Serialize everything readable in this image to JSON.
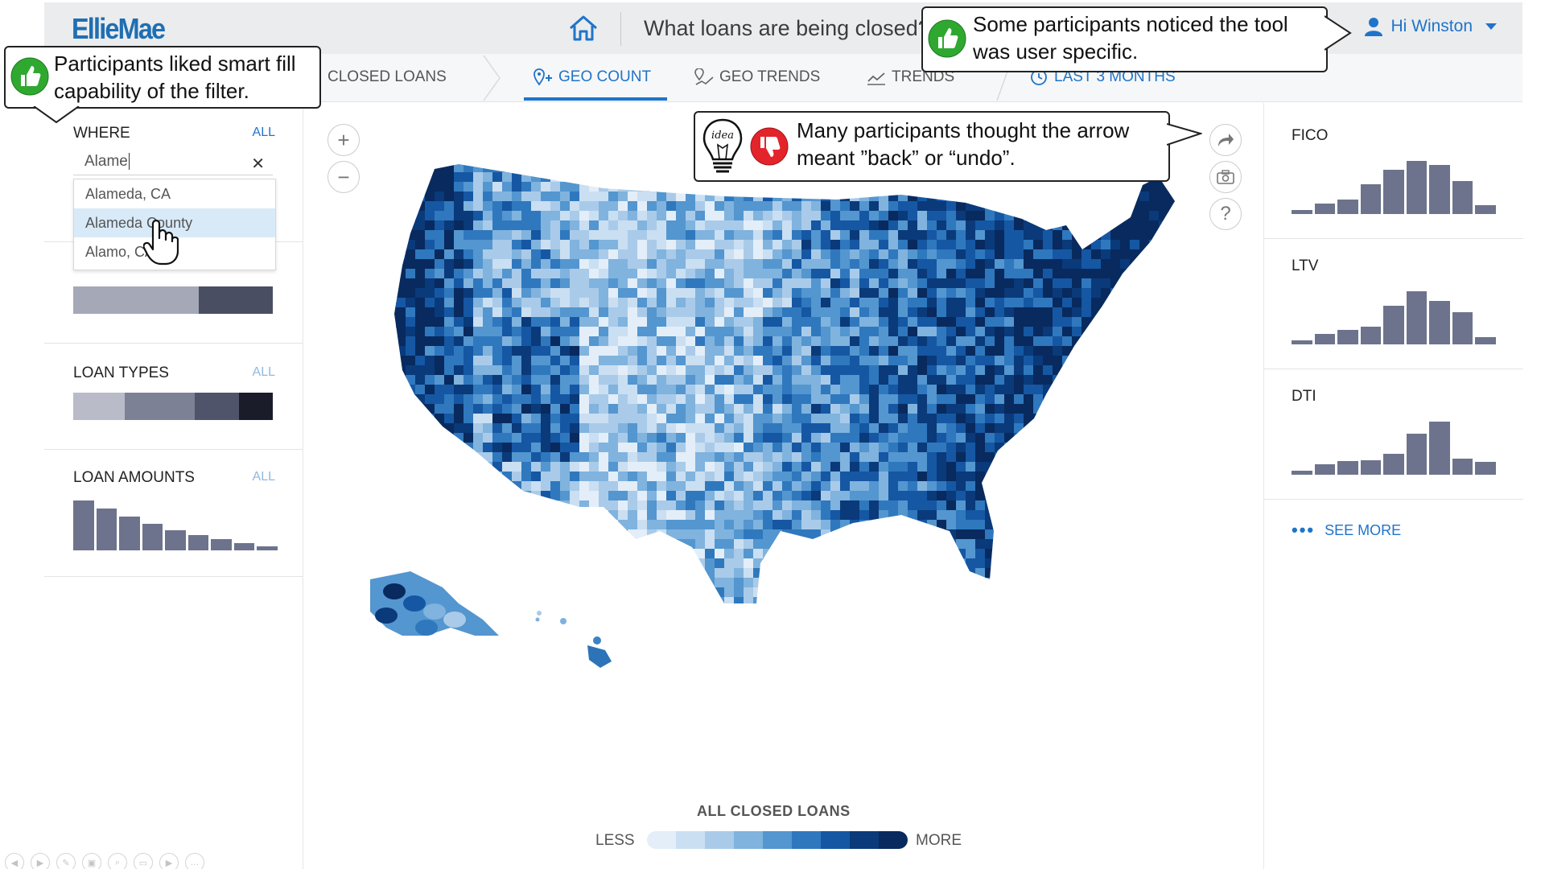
{
  "header": {
    "logo": "EllieMae",
    "title": "What loans are being closed?",
    "user_label": "Hi Winston"
  },
  "nav": {
    "items": [
      {
        "label": "CLOSED LOANS",
        "active": false
      },
      {
        "label": "GEO COUNT",
        "active": true,
        "icon": "map-pin-add-icon"
      },
      {
        "label": "GEO TRENDS",
        "active": false,
        "icon": "geo-trend-icon"
      },
      {
        "label": "TRENDS",
        "active": false,
        "icon": "line-chart-icon"
      },
      {
        "label": "LAST 3 MONTHS",
        "active": false,
        "icon": "clock-icon"
      }
    ]
  },
  "left_panel": {
    "where": {
      "label": "WHERE",
      "all": "ALL",
      "input_value": "Alame",
      "suggestions": [
        "Alameda, CA",
        "Alameda County",
        "Alamo, CA"
      ]
    },
    "loan_purpose": {
      "segments": [
        {
          "share": 0.63,
          "color": "#a5a8b6"
        },
        {
          "share": 0.37,
          "color": "#4a4e63"
        }
      ]
    },
    "loan_types": {
      "label": "LOAN TYPES",
      "all": "ALL",
      "segments": [
        {
          "share": 0.26,
          "color": "#b9bcc8"
        },
        {
          "share": 0.35,
          "color": "#7d8196"
        },
        {
          "share": 0.22,
          "color": "#4f546a"
        },
        {
          "share": 0.17,
          "color": "#1a1c2a"
        }
      ]
    },
    "loan_amounts": {
      "label": "LOAN AMOUNTS",
      "all": "ALL",
      "bars": [
        1.0,
        0.84,
        0.68,
        0.54,
        0.4,
        0.3,
        0.22,
        0.14,
        0.08
      ]
    }
  },
  "map": {
    "zoom_in": "+",
    "zoom_out": "−",
    "legend_title": "ALL CLOSED LOANS",
    "legend_less": "LESS",
    "legend_more": "MORE",
    "legend_colors": [
      "#e3eef9",
      "#cadff2",
      "#a9cbe9",
      "#80b3de",
      "#5496cf",
      "#2f78be",
      "#1557a3",
      "#0a3a7a",
      "#082a5e"
    ]
  },
  "right_panel": {
    "histograms": [
      {
        "label": "FICO",
        "bars": [
          0.08,
          0.2,
          0.28,
          0.56,
          0.84,
          1.0,
          0.92,
          0.62,
          0.16
        ]
      },
      {
        "label": "LTV",
        "bars": [
          0.08,
          0.2,
          0.28,
          0.34,
          0.72,
          1.0,
          0.82,
          0.6,
          0.14
        ]
      },
      {
        "label": "DTI",
        "bars": [
          0.08,
          0.2,
          0.26,
          0.28,
          0.4,
          0.78,
          1.0,
          0.3,
          0.24
        ]
      }
    ],
    "see_more": "SEE MORE"
  },
  "annotations": {
    "smart_fill": "Participants liked smart fill capability of the filter.",
    "user_specific": "Some participants noticed the tool was user specific.",
    "arrow_meaning": "Many participants thought the arrow meant ”back” or “undo”.",
    "idea_label": "idea"
  },
  "colors": {
    "accent": "#1f74c9",
    "thumb_up": "#2fa830",
    "thumb_down": "#e3242b",
    "histogram": "#6d738c"
  }
}
